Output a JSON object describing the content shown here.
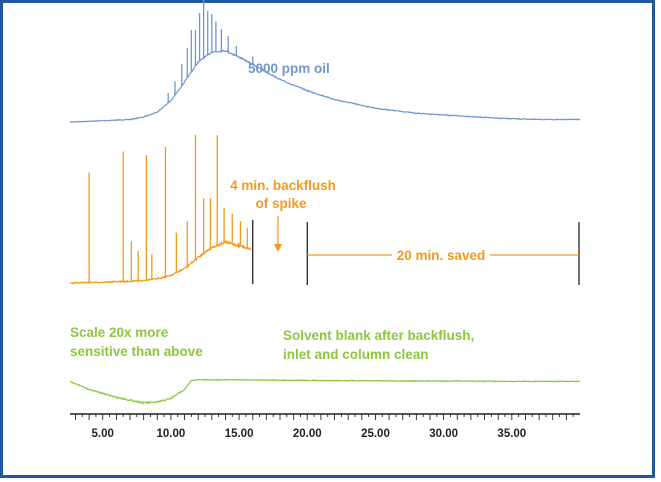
{
  "chart_data": {
    "type": "line",
    "xlabel": "",
    "ylabel": "",
    "xlim": [
      2.6,
      40
    ],
    "xticks": [
      "5.00",
      "10.00",
      "15.00",
      "20.00",
      "25.00",
      "30.00",
      "35.00"
    ],
    "xtick_values": [
      5,
      10,
      15,
      20,
      25,
      30,
      35
    ],
    "series": [
      {
        "name": "5000 ppm oil",
        "color": "#6f98d0",
        "x": [
          2.6,
          5,
          7,
          8,
          9,
          10,
          11,
          12,
          13,
          14,
          15,
          16,
          17,
          18,
          20,
          22,
          25,
          28,
          31,
          34,
          37,
          40
        ],
        "relative": [
          0,
          0.01,
          0.02,
          0.04,
          0.08,
          0.17,
          0.32,
          0.48,
          0.56,
          0.57,
          0.52,
          0.46,
          0.4,
          0.34,
          0.25,
          0.18,
          0.11,
          0.07,
          0.05,
          0.03,
          0.02,
          0.02
        ]
      },
      {
        "name": "4 min. backflush of spike",
        "color": "#f39a1e",
        "x": [
          2.6,
          5,
          7,
          8,
          9,
          10,
          11,
          12,
          13,
          14,
          15,
          15.9
        ],
        "relative": [
          0,
          0.01,
          0.02,
          0.03,
          0.05,
          0.09,
          0.17,
          0.3,
          0.42,
          0.48,
          0.44,
          0.4
        ]
      },
      {
        "name": "Solvent blank after backflush, inlet and column clean",
        "color": "#8dc63f",
        "x": [
          2.6,
          4,
          6,
          8,
          9,
          10,
          11,
          11.5,
          12,
          15,
          20,
          25,
          30,
          35,
          40
        ],
        "relative": [
          0.05,
          -0.2,
          -0.45,
          -0.62,
          -0.6,
          -0.48,
          -0.2,
          0.08,
          0.1,
          0.1,
          0.08,
          0.07,
          0.06,
          0.05,
          0.05
        ]
      }
    ],
    "annotations": {
      "oil_label": "5000 ppm oil",
      "backflush_line1": "4 min. backflush",
      "backflush_line2": "of spike",
      "saved_label": "20 min. saved",
      "scale_line1": "Scale 20x more",
      "scale_line2": "sensitive than above",
      "blank_line1": "Solvent blank after backflush,",
      "blank_line2": "inlet and column clean"
    },
    "marks": {
      "backflush_stop": 16,
      "saved_start": 20,
      "saved_end": 40
    },
    "grid": false,
    "legend": "none"
  }
}
